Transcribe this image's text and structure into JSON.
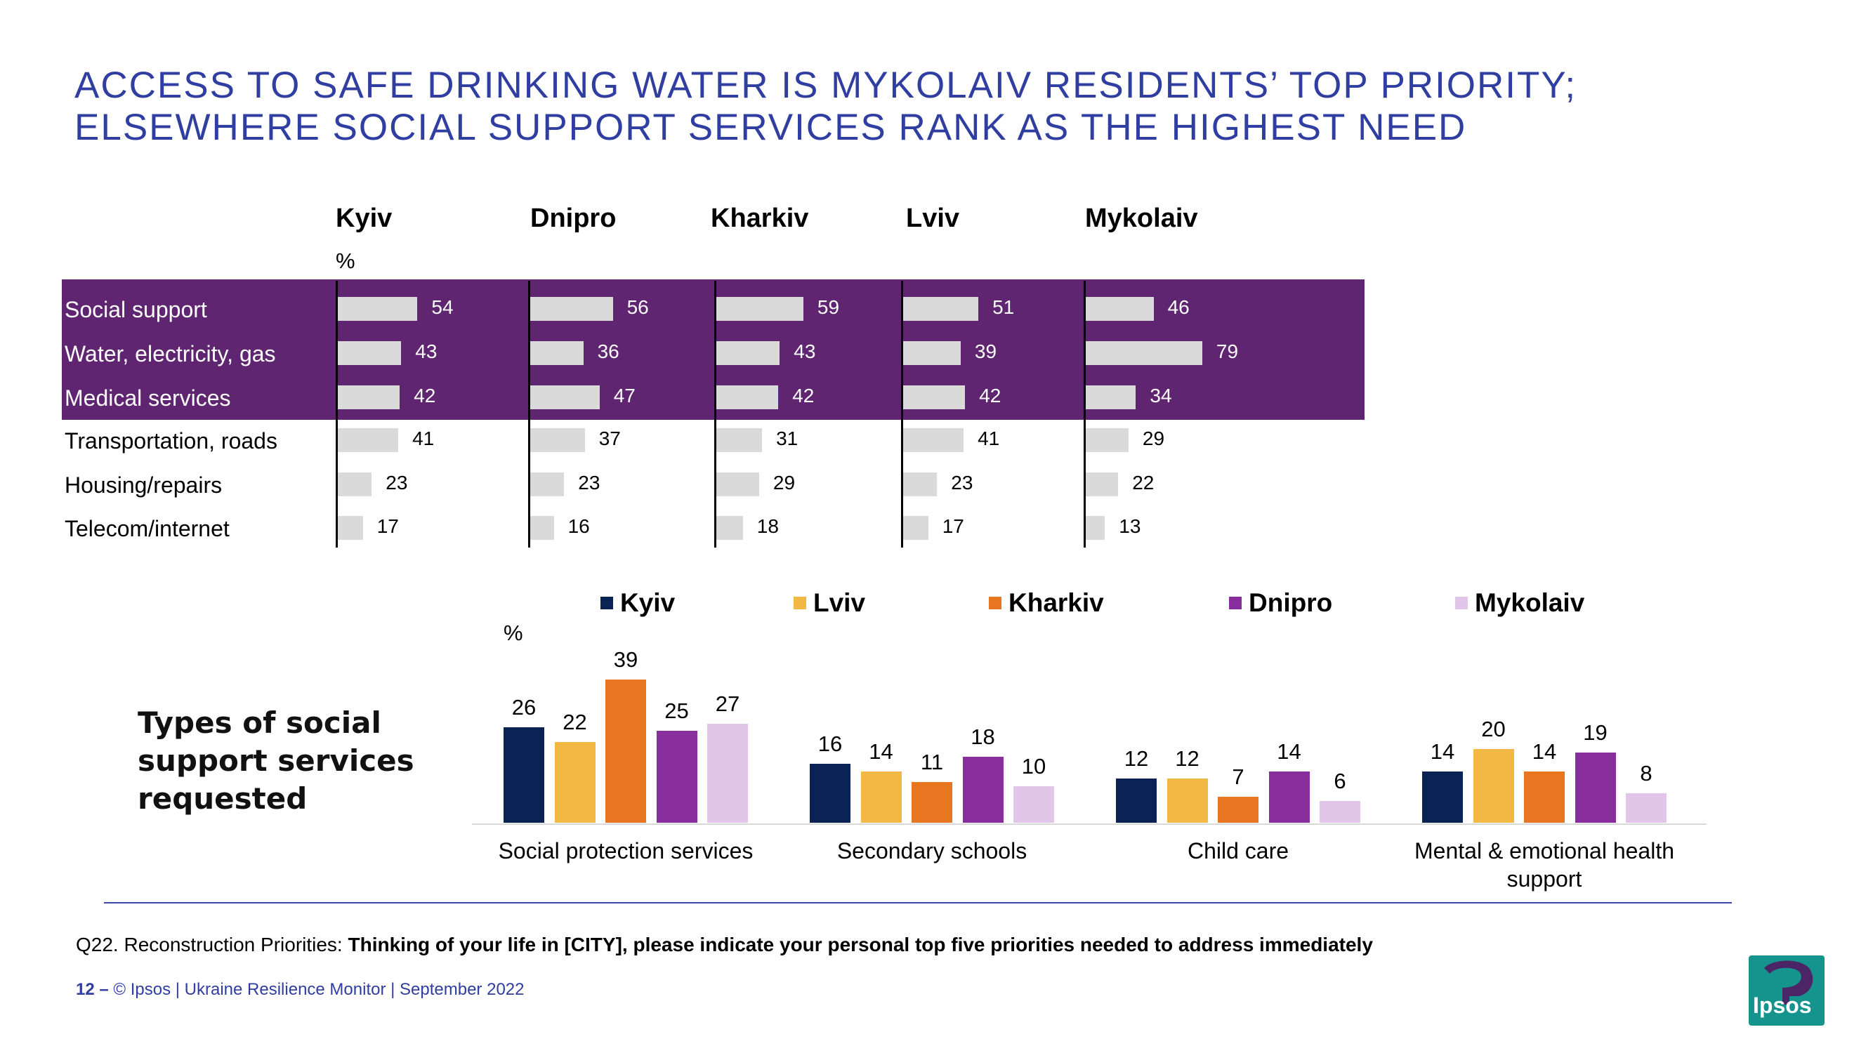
{
  "title_line1": "ACCESS TO SAFE DRINKING WATER IS MYKOLAIV RESIDENTS’ TOP PRIORITY;",
  "title_line2": "ELSEWHERE SOCIAL SUPPORT SERVICES RANK AS THE HIGHEST NEED",
  "colors": {
    "title": "#2f3ea0",
    "band": "#5f2570",
    "hbar": "#dadada",
    "kyiv": "#0b2354",
    "lviv": "#f1b944",
    "kharkiv": "#e8751f",
    "dnipro": "#882e9c",
    "mykolaiv": "#e1c6e9",
    "logo": "#14948d"
  },
  "side_title": [
    "Types of social",
    "support services",
    "requested"
  ],
  "footnote_prefix": "Q22. Reconstruction Priorities: ",
  "footnote_bold": "Thinking of your life in [CITY], please indicate your personal top five priorities needed to address immediately",
  "footer_number": "12 –",
  "footer_text": "© Ipsos | Ukraine Resilience Monitor | September 2022",
  "logo_text": "Ipsos",
  "chart_data": [
    {
      "type": "bar",
      "orientation": "horizontal",
      "ylabel": "%",
      "categories": [
        "Social support",
        "Water, electricity, gas",
        "Medical services",
        "Transportation, roads",
        "Housing/repairs",
        "Telecom/internet"
      ],
      "highlighted_categories": [
        "Social support",
        "Water, electricity, gas",
        "Medical services"
      ],
      "series": [
        {
          "name": "Kyiv",
          "values": [
            54,
            43,
            42,
            41,
            23,
            17
          ]
        },
        {
          "name": "Dnipro",
          "values": [
            56,
            36,
            47,
            37,
            23,
            16
          ]
        },
        {
          "name": "Kharkiv",
          "values": [
            59,
            43,
            42,
            31,
            29,
            18
          ]
        },
        {
          "name": "Lviv",
          "values": [
            51,
            39,
            42,
            41,
            23,
            17
          ]
        },
        {
          "name": "Mykolaiv",
          "values": [
            46,
            79,
            34,
            29,
            22,
            13
          ]
        }
      ]
    },
    {
      "type": "bar",
      "orientation": "vertical",
      "title": "Types of social support services requested",
      "ylabel": "%",
      "legend": [
        "Kyiv",
        "Lviv",
        "Kharkiv",
        "Dnipro",
        "Mykolaiv"
      ],
      "legend_position": "top",
      "categories": [
        "Social protection services",
        "Secondary schools",
        "Child care",
        "Mental & emotional health support"
      ],
      "series": [
        {
          "name": "Kyiv",
          "values": [
            26,
            16,
            12,
            14
          ]
        },
        {
          "name": "Lviv",
          "values": [
            22,
            14,
            12,
            20
          ]
        },
        {
          "name": "Kharkiv",
          "values": [
            39,
            11,
            7,
            14
          ]
        },
        {
          "name": "Dnipro",
          "values": [
            25,
            18,
            14,
            19
          ]
        },
        {
          "name": "Mykolaiv",
          "values": [
            27,
            10,
            6,
            8
          ]
        }
      ]
    }
  ]
}
